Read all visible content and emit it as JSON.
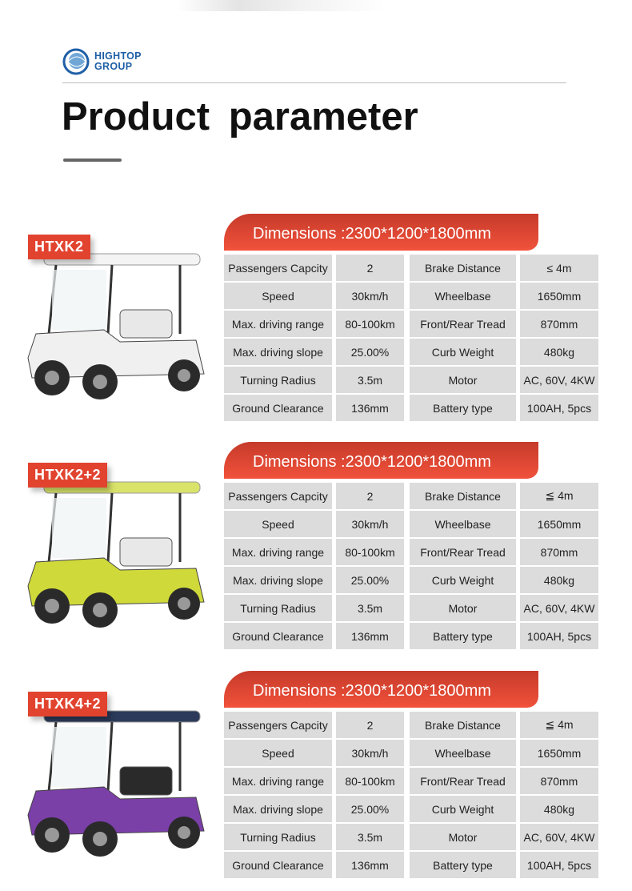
{
  "brand": {
    "line1": "HIGHTOP",
    "line2": "GROUP",
    "accent": "#1f5fa6"
  },
  "title": "Product  parameter",
  "colors": {
    "tag": "#e1432f",
    "cell": "#dcdcdc"
  },
  "products": [
    {
      "model": "HTXK2",
      "dimensions": "Dimensions :2300*1200*1800mm",
      "image": {
        "roof": "#f4f4f4",
        "body": "#f0f0f0",
        "seat": "#e8e8e8"
      },
      "rows": [
        [
          "Passengers Capcity",
          "2",
          "Brake Distance",
          "≤ 4m"
        ],
        [
          "Speed",
          "30km/h",
          "Wheelbase",
          "1650mm"
        ],
        [
          "Max. driving range",
          "80-100km",
          "Front/Rear Tread",
          "870mm"
        ],
        [
          "Max. driving slope",
          "25.00%",
          "Curb Weight",
          "480kg"
        ],
        [
          "Turning Radius",
          "3.5m",
          "Motor",
          "AC, 60V, 4KW"
        ],
        [
          "Ground Clearance",
          "136mm",
          "Battery type",
          "100AH, 5pcs"
        ]
      ]
    },
    {
      "model": "HTXK2+2",
      "dimensions": "Dimensions :2300*1200*1800mm",
      "image": {
        "roof": "#d9e36a",
        "body": "#cfd93a",
        "seat": "#e8e8e8"
      },
      "rows": [
        [
          "Passengers Capcity",
          "2",
          "Brake Distance",
          "≦ 4m"
        ],
        [
          "Speed",
          "30km/h",
          "Wheelbase",
          "1650mm"
        ],
        [
          "Max. driving range",
          "80-100km",
          "Front/Rear Tread",
          "870mm"
        ],
        [
          "Max. driving slope",
          "25.00%",
          "Curb Weight",
          "480kg"
        ],
        [
          "Turning Radius",
          "3.5m",
          "Motor",
          "AC, 60V, 4KW"
        ],
        [
          "Ground Clearance",
          "136mm",
          "Battery type",
          "100AH, 5pcs"
        ]
      ]
    },
    {
      "model": "HTXK4+2",
      "dimensions": "Dimensions :2300*1200*1800mm",
      "image": {
        "roof": "#2b3a5a",
        "body": "#7b3fa8",
        "seat": "#2a2a2a"
      },
      "rows": [
        [
          "Passengers Capcity",
          "2",
          "Brake Distance",
          "≦ 4m"
        ],
        [
          "Speed",
          "30km/h",
          "Wheelbase",
          "1650mm"
        ],
        [
          "Max. driving range",
          "80-100km",
          "Front/Rear Tread",
          "870mm"
        ],
        [
          "Max. driving slope",
          "25.00%",
          "Curb Weight",
          "480kg"
        ],
        [
          "Turning Radius",
          "3.5m",
          "Motor",
          "AC, 60V, 4KW"
        ],
        [
          "Ground Clearance",
          "136mm",
          "Battery type",
          "100AH, 5pcs"
        ]
      ]
    }
  ]
}
